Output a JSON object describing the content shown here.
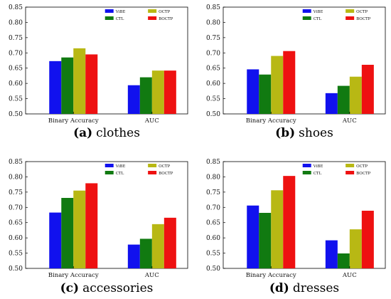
{
  "legend_colors": {
    "ViBE": "#1111ee",
    "CTL": "#117a11",
    "OCTP": "#b8b814",
    "BOCTP": "#ee1111"
  },
  "chart_data": [
    {
      "type": "bar",
      "caption_letter": "(a)",
      "caption_text": "clothes",
      "categories": [
        "Binary Accuracy",
        "AUC"
      ],
      "series": [
        {
          "name": "ViBE",
          "values": [
            0.673,
            0.594
          ]
        },
        {
          "name": "CTL",
          "values": [
            0.685,
            0.62
          ]
        },
        {
          "name": "OCTP",
          "values": [
            0.715,
            0.642
          ]
        },
        {
          "name": "BOCTP",
          "values": [
            0.695,
            0.642
          ]
        }
      ],
      "ylim": [
        0.5,
        0.85
      ],
      "yticks": [
        "0.50",
        "0.55",
        "0.60",
        "0.65",
        "0.70",
        "0.75",
        "0.80",
        "0.85"
      ],
      "legend_placement": "top-right"
    },
    {
      "type": "bar",
      "caption_letter": "(b)",
      "caption_text": "shoes",
      "categories": [
        "Binary Accuracy",
        "AUC"
      ],
      "series": [
        {
          "name": "ViBE",
          "values": [
            0.646,
            0.568
          ]
        },
        {
          "name": "CTL",
          "values": [
            0.629,
            0.592
          ]
        },
        {
          "name": "OCTP",
          "values": [
            0.69,
            0.622
          ]
        },
        {
          "name": "BOCTP",
          "values": [
            0.706,
            0.661
          ]
        }
      ],
      "ylim": [
        0.5,
        0.85
      ],
      "yticks": [
        "0.50",
        "0.55",
        "0.60",
        "0.65",
        "0.70",
        "0.75",
        "0.80",
        "0.85"
      ],
      "legend_placement": "top-right"
    },
    {
      "type": "bar",
      "caption_letter": "(c)",
      "caption_text": "accessories",
      "categories": [
        "Binary Accuracy",
        "AUC"
      ],
      "series": [
        {
          "name": "ViBE",
          "values": [
            0.683,
            0.578
          ]
        },
        {
          "name": "CTL",
          "values": [
            0.731,
            0.597
          ]
        },
        {
          "name": "OCTP",
          "values": [
            0.755,
            0.645
          ]
        },
        {
          "name": "BOCTP",
          "values": [
            0.779,
            0.666
          ]
        }
      ],
      "ylim": [
        0.5,
        0.85
      ],
      "yticks": [
        "0.50",
        "0.55",
        "0.60",
        "0.65",
        "0.70",
        "0.75",
        "0.80",
        "0.85"
      ],
      "legend_placement": "top-right"
    },
    {
      "type": "bar",
      "caption_letter": "(d)",
      "caption_text": "dresses",
      "categories": [
        "Binary Accuracy",
        "AUC"
      ],
      "series": [
        {
          "name": "ViBE",
          "values": [
            0.706,
            0.592
          ]
        },
        {
          "name": "CTL",
          "values": [
            0.682,
            0.549
          ]
        },
        {
          "name": "OCTP",
          "values": [
            0.756,
            0.628
          ]
        },
        {
          "name": "BOCTP",
          "values": [
            0.803,
            0.689
          ]
        }
      ],
      "ylim": [
        0.5,
        0.85
      ],
      "yticks": [
        "0.50",
        "0.55",
        "0.60",
        "0.65",
        "0.70",
        "0.75",
        "0.80",
        "0.85"
      ],
      "legend_placement": "top-right"
    }
  ]
}
